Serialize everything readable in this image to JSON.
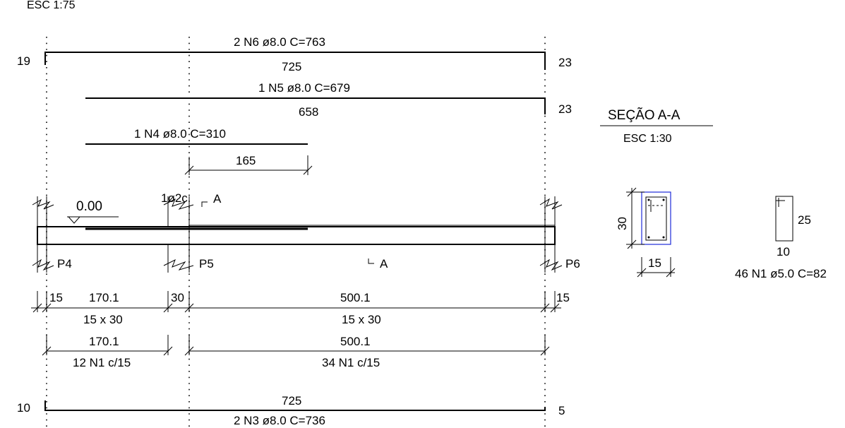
{
  "header": {
    "scale_label": "ESC 1:75"
  },
  "bars": {
    "n6": {
      "label": "2 N6 ø8.0  C=763",
      "length": "725",
      "hook_left": "19",
      "hook_right": "23"
    },
    "n5": {
      "label": "1 N5 ø8.0  C=679",
      "length": "658",
      "hook_right": "23"
    },
    "n4": {
      "label": "1 N4 ø8.0  C=310",
      "anchor_length": "165"
    },
    "n3": {
      "label": "2 N3 ø8.0  C=736",
      "length": "725",
      "hook_left": "10",
      "hook_right": "5"
    }
  },
  "beam": {
    "level": "0.00",
    "stirrup_note": "1ø2c",
    "section_mark": "A",
    "supports": [
      "P4",
      "P5",
      "P6"
    ]
  },
  "dimensions": {
    "row1": [
      "15",
      "170.1",
      "30",
      "500.1",
      "15"
    ],
    "sections": [
      "15 x 30",
      "15 x 30"
    ],
    "row2": [
      "170.1",
      "500.1"
    ],
    "stirrups": [
      "12 N1 c/15",
      "34 N1 c/15"
    ]
  },
  "section": {
    "title": "SEÇÃO A-A",
    "scale": "ESC 1:30",
    "height": "30",
    "width": "15",
    "stirrup_height": "25",
    "stirrup_width": "10",
    "stirrup_label": "46 N1 ø5.0  C=82"
  }
}
